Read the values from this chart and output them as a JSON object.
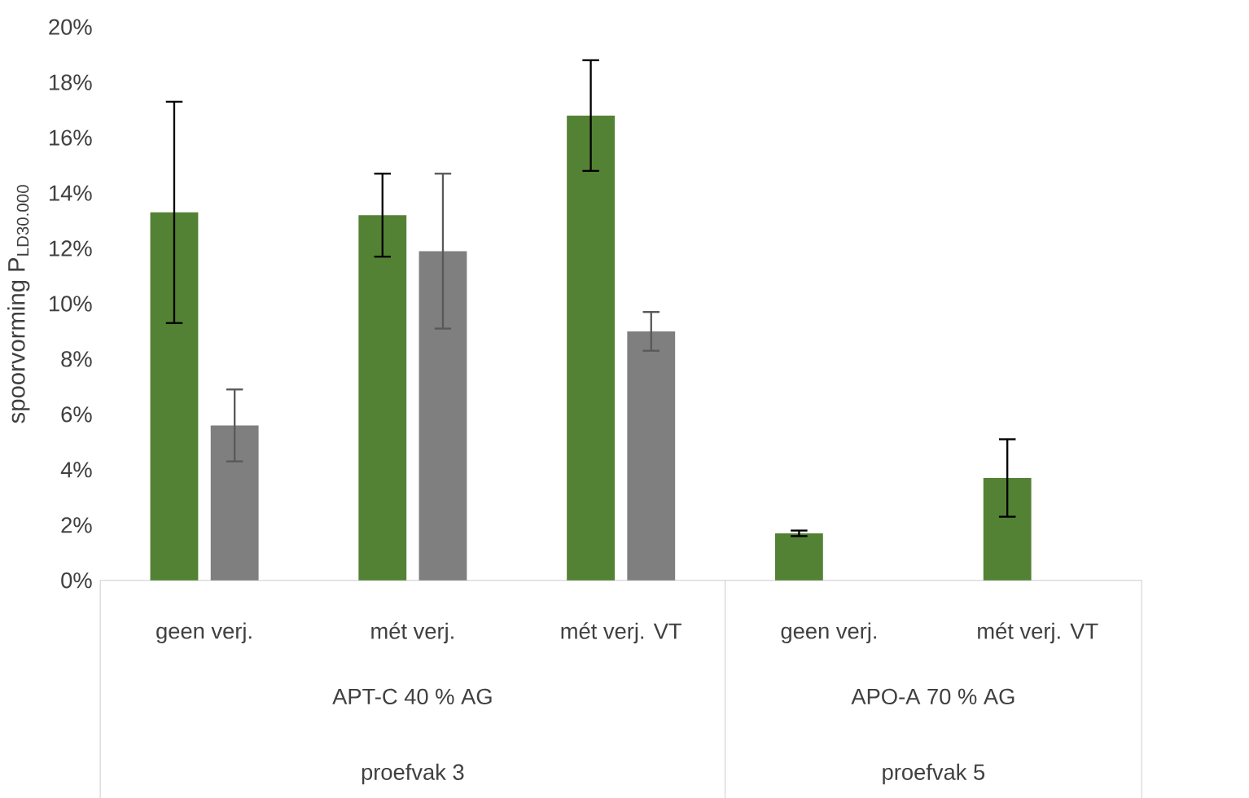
{
  "chart_data": {
    "type": "bar",
    "ylabel": "spoorvorming P$_{LD30.000}$",
    "categories": [
      "geen verj.",
      "mét verj.",
      "mét verj. VT",
      "geen verj.",
      "mét verj. VT"
    ],
    "series": [
      {
        "color": "#548235",
        "values": [
          13.3,
          13.2,
          16.8,
          1.7,
          3.7
        ],
        "errors": [
          [
            9.3,
            17.3
          ],
          [
            11.7,
            14.7
          ],
          [
            14.8,
            18.8
          ],
          [
            1.6,
            1.8
          ],
          [
            2.3,
            5.1
          ]
        ]
      },
      {
        "color": "#7f7f7f",
        "values": [
          5.6,
          11.9,
          9.0,
          null,
          null
        ],
        "errors": [
          [
            4.3,
            6.9
          ],
          [
            9.1,
            14.7
          ],
          [
            8.3,
            9.7
          ],
          null,
          null
        ]
      }
    ],
    "ylim": [
      0,
      20
    ],
    "yticks": [
      {
        "value": 0,
        "label": "0%"
      },
      {
        "value": 2,
        "label": "2%"
      },
      {
        "value": 4,
        "label": "4%"
      },
      {
        "value": 6,
        "label": "6%"
      },
      {
        "value": 8,
        "label": "8%"
      },
      {
        "value": 10,
        "label": "10%"
      },
      {
        "value": 12,
        "label": "12%"
      },
      {
        "value": 14,
        "label": "14%"
      },
      {
        "value": 16,
        "label": "16%"
      },
      {
        "value": 18,
        "label": "18%"
      },
      {
        "value": 20,
        "label": "20%"
      }
    ],
    "annotations": [
      "APT-C 40 % AG",
      "APO-A 70 % AG",
      "proefvak 3",
      "proefvak 5"
    ],
    "grid": false
  }
}
